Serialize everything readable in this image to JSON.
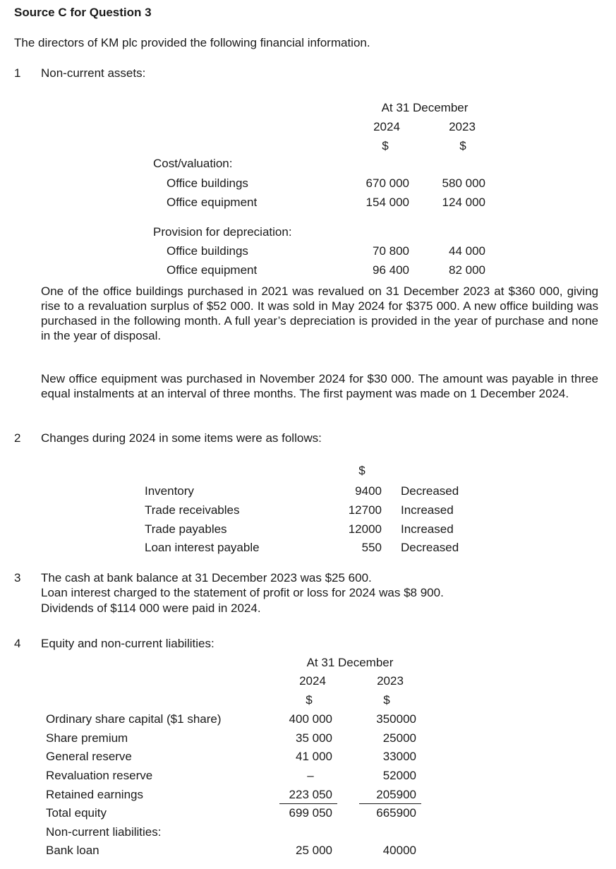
{
  "title": "Source C for Question 3",
  "intro": "The directors of KM plc provided the following financial information.",
  "item1": {
    "number": "1",
    "heading": "Non-current assets:",
    "period_label": "At 31 December",
    "years": [
      "2024",
      "2023"
    ],
    "currency": [
      "$",
      "$"
    ],
    "groups": [
      {
        "label": "Cost/valuation:",
        "rows": [
          {
            "label": "Office buildings",
            "values": [
              "670 000",
              "580 000"
            ]
          },
          {
            "label": "Office equipment",
            "values": [
              "154 000",
              "124 000"
            ]
          }
        ]
      },
      {
        "label": "Provision for depreciation:",
        "rows": [
          {
            "label": "Office buildings",
            "values": [
              "70 800",
              "44 000"
            ]
          },
          {
            "label": "Office equipment",
            "values": [
              "96 400",
              "82 000"
            ]
          }
        ]
      }
    ],
    "paragraphs": [
      "One of the office buildings purchased in 2021 was revalued on 31 December 2023 at $360 000, giving rise to a revaluation surplus of $52 000. It was sold in May 2024 for $375 000. A new office building was purchased in the following month. A full year’s depreciation is provided in the year of purchase and none in the year of disposal.",
      "New office equipment was purchased in November 2024 for $30 000. The amount was payable in three equal instalments at an interval of three months. The first payment was made on 1 December 2024."
    ]
  },
  "item2": {
    "number": "2",
    "heading": "Changes during 2024 in some items were as follows:",
    "currency": "$",
    "rows": [
      {
        "label": "Inventory",
        "value": "9400",
        "change": "Decreased"
      },
      {
        "label": "Trade receivables",
        "value": "12700",
        "change": "Increased"
      },
      {
        "label": "Trade payables",
        "value": "12000",
        "change": "Increased"
      },
      {
        "label": "Loan interest payable",
        "value": "550",
        "change": "Decreased"
      }
    ]
  },
  "item3": {
    "number": "3",
    "lines": [
      "The cash at bank balance at 31 December 2023 was $25 600.",
      "Loan interest charged to the statement of profit or loss for 2024 was $8 900.",
      "Dividends of $114 000 were paid in 2024."
    ]
  },
  "item4": {
    "number": "4",
    "heading": "Equity and non-current liabilities:",
    "period_label": "At 31 December",
    "years": [
      "2024",
      "2023"
    ],
    "currency": [
      "$",
      "$"
    ],
    "rows": [
      {
        "label": "Ordinary share capital ($1 share)",
        "values": [
          "400 000",
          "350000"
        ]
      },
      {
        "label": "Share premium",
        "values": [
          "35 000",
          "25000"
        ]
      },
      {
        "label": "General reserve",
        "values": [
          "41 000",
          "33000"
        ]
      },
      {
        "label": "Revaluation reserve",
        "values": [
          "–",
          "52000"
        ]
      },
      {
        "label": "Retained earnings",
        "values": [
          "223 050",
          "205900"
        ]
      },
      {
        "label": "Total equity",
        "values": [
          "699 050",
          "665900"
        ]
      },
      {
        "label": "Non-current liabilities:",
        "values": [
          "",
          ""
        ]
      },
      {
        "label": "Bank loan",
        "values": [
          "25 000",
          "40000"
        ]
      }
    ]
  }
}
